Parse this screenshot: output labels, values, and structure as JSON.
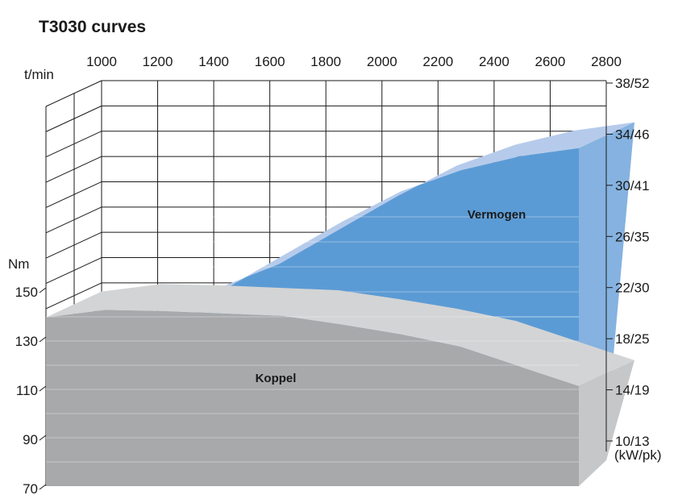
{
  "title": "T3030 curves",
  "colors": {
    "power_front": "#5b9bd5",
    "power_top": "#b6cbeb",
    "power_side": "#85b2e0",
    "torque_front": "#a7a9ab",
    "torque_top": "#d3d4d5",
    "torque_side": "#c6c7c8",
    "grid": "#1a1a1a"
  },
  "chart_data": {
    "type": "area",
    "title": "T3030 curves",
    "x_axis": {
      "label": "t/min",
      "ticks": [
        "1000",
        "1200",
        "1400",
        "1600",
        "1800",
        "2000",
        "2200",
        "2400",
        "2600",
        "2800"
      ],
      "range": [
        1000,
        2800
      ]
    },
    "y_axis_left": {
      "label": "Nm",
      "ticks": [
        "70",
        "90",
        "110",
        "130",
        "150"
      ],
      "range": [
        70,
        150
      ]
    },
    "y_axis_right": {
      "label": "(kW/pk)",
      "ticks": [
        "10/13",
        "14/19",
        "18/25",
        "22/30",
        "26/35",
        "30/41",
        "34/46",
        "38/52"
      ],
      "range_kw": [
        10,
        38
      ]
    },
    "series": [
      {
        "name": "Koppel",
        "axis": "left",
        "x": [
          1000,
          1200,
          1400,
          1600,
          1800,
          2000,
          2200,
          2400,
          2600,
          2800
        ],
        "y": [
          139,
          142,
          141.5,
          140.5,
          139.5,
          136,
          132,
          127,
          119,
          111
        ]
      },
      {
        "name": "Vermogen",
        "axis": "right",
        "x": [
          1000,
          1200,
          1400,
          1600,
          1800,
          2000,
          2200,
          2400,
          2600,
          2800
        ],
        "y": [
          12.5,
          16.4,
          19.7,
          22.9,
          25.8,
          28.7,
          31.3,
          33.1,
          34.3,
          35.0
        ]
      }
    ]
  }
}
